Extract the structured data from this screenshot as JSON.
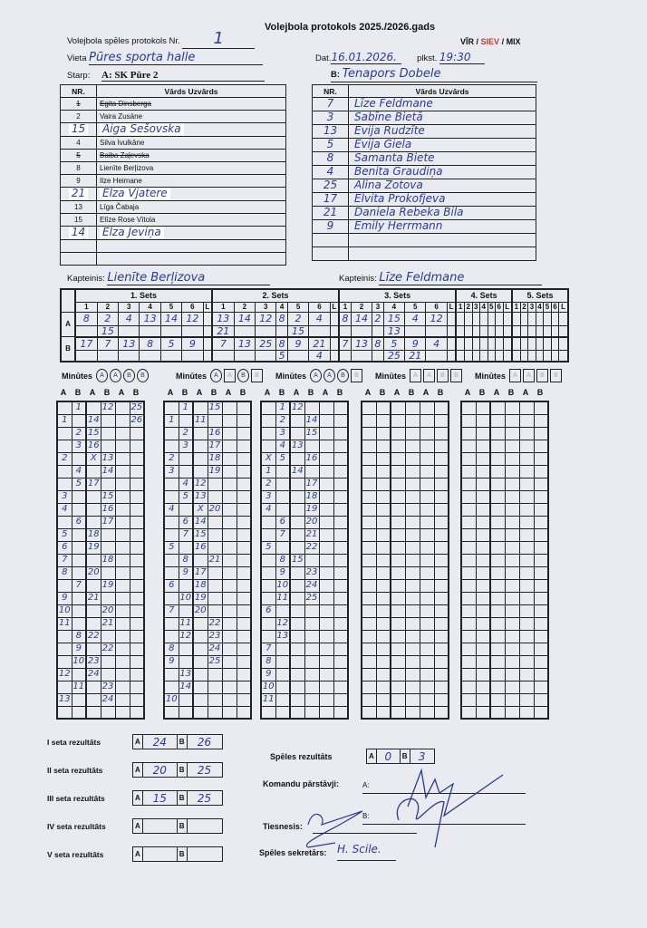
{
  "title": "Volejbola protokols 2025./2026.gads",
  "header": {
    "protocol_label": "Volejbola spēles protokols Nr.",
    "protocol_nr": "1",
    "venue_label": "Vieta",
    "venue": "Pūres sporta halle",
    "date_label": "Dat.",
    "date": "16.01.2026.",
    "time_label": "plkst.",
    "time": "19:30",
    "gender_vir": "VĪR /",
    "gender_siev": "SIEV",
    "gender_mix": "/ MIX",
    "gender_selected_color": "#c0392b",
    "between_label": "Starp:",
    "team_a_label": "A:",
    "team_a": "SK Pūre 2",
    "team_b_label": "B:",
    "team_b": "Tenapors Dobele"
  },
  "roster_headers": {
    "nr": "NR.",
    "name": "Vārds Uzvārds"
  },
  "team_a_players": [
    {
      "nr": "1",
      "name": "Egita Dinsberga",
      "struck": true
    },
    {
      "nr": "2",
      "name": "Vaira Zusāne"
    },
    {
      "nr": "15",
      "name": "Aiga Šešovska",
      "handwritten": true
    },
    {
      "nr": "4",
      "name": "Silva Ivulkāne"
    },
    {
      "nr": "5",
      "name": "Baiba Zaļevska",
      "struck": true
    },
    {
      "nr": "8",
      "name": "Lienīte Berļizova"
    },
    {
      "nr": "9",
      "name": "Ilze Heimane"
    },
    {
      "nr": "21",
      "name": "Elza Vjatere",
      "handwritten": true
    },
    {
      "nr": "13",
      "name": "Līga Čabaja"
    },
    {
      "nr": "15",
      "name": "Elīze Rose Vītola"
    },
    {
      "nr": "14",
      "name": "Elza Jeviņa",
      "handwritten": true
    },
    {
      "nr": "",
      "name": ""
    },
    {
      "nr": "",
      "name": ""
    }
  ],
  "team_b_players": [
    {
      "nr": "7",
      "name": "Līze Feldmane"
    },
    {
      "nr": "3",
      "name": "Sabīne Bietā"
    },
    {
      "nr": "13",
      "name": "Evija Rudzīte"
    },
    {
      "nr": "5",
      "name": "Evija Giela"
    },
    {
      "nr": "8",
      "name": "Samanta Biete"
    },
    {
      "nr": "4",
      "name": "Benita Graudiņa"
    },
    {
      "nr": "25",
      "name": "Alina Zotova"
    },
    {
      "nr": "17",
      "name": "Elvita Prokofjeva"
    },
    {
      "nr": "21",
      "name": "Daniela Rebeka Bila"
    },
    {
      "nr": "9",
      "name": "Emily Herrmann"
    },
    {
      "nr": "",
      "name": ""
    },
    {
      "nr": "",
      "name": ""
    }
  ],
  "captain_label": "Kapteinis:",
  "captain_a": "Lienīte Berļizova",
  "captain_b": "Līze Feldmane",
  "lineup": {
    "position_headers": [
      "1",
      "2",
      "3",
      "4",
      "5",
      "6",
      "L"
    ],
    "team_labels": [
      "A",
      "B"
    ],
    "minutes_label": "Minūtes",
    "sets": [
      {
        "label": "1. Sets",
        "a": [
          "8",
          "2",
          "4",
          "13",
          "14",
          "12",
          ""
        ],
        "a2": [
          "",
          "15",
          "",
          "",
          "",
          "",
          ""
        ],
        "b": [
          "17",
          "7",
          "13",
          "8",
          "5",
          "9",
          ""
        ],
        "b2": [
          "",
          "",
          "",
          "",
          "",
          "",
          ""
        ],
        "timeouts": [
          "A",
          "A",
          "B",
          "B"
        ],
        "timeouts_used": [
          true,
          true,
          true,
          true
        ]
      },
      {
        "label": "2. Sets",
        "a": [
          "13",
          "14",
          "12",
          "8",
          "2",
          "4",
          ""
        ],
        "a2": [
          "21",
          "",
          "",
          "",
          "15",
          "",
          ""
        ],
        "b": [
          "7",
          "13",
          "25",
          "8",
          "9",
          "21",
          ""
        ],
        "b2": [
          "",
          "",
          "",
          "5",
          "",
          "4",
          ""
        ],
        "timeouts": [
          "A",
          "A",
          "B",
          "B"
        ],
        "timeouts_used": [
          true,
          false,
          true,
          false
        ]
      },
      {
        "label": "3. Sets",
        "a": [
          "8",
          "14",
          "2",
          "15",
          "4",
          "12",
          ""
        ],
        "a2": [
          "",
          "",
          "",
          "13",
          "",
          "",
          ""
        ],
        "b": [
          "7",
          "13",
          "8",
          "5",
          "9",
          "4",
          ""
        ],
        "b2": [
          "",
          "",
          "",
          "25",
          "21",
          "",
          ""
        ],
        "timeouts": [
          "A",
          "A",
          "B",
          "B"
        ],
        "timeouts_used": [
          true,
          true,
          true,
          false
        ]
      },
      {
        "label": "4. Sets",
        "a": [
          "",
          "",
          "",
          "",
          "",
          "",
          ""
        ],
        "a2": [
          "",
          "",
          "",
          "",
          "",
          "",
          ""
        ],
        "b": [
          "",
          "",
          "",
          "",
          "",
          "",
          ""
        ],
        "b2": [
          "",
          "",
          "",
          "",
          "",
          "",
          ""
        ],
        "timeouts": [
          "A",
          "A",
          "B",
          "B"
        ],
        "timeouts_used": [
          false,
          false,
          false,
          false
        ]
      },
      {
        "label": "5. Sets",
        "a": [
          "",
          "",
          "",
          "",
          "",
          "",
          ""
        ],
        "a2": [
          "",
          "",
          "",
          "",
          "",
          "",
          ""
        ],
        "b": [
          "",
          "",
          "",
          "",
          "",
          "",
          ""
        ],
        "b2": [
          "",
          "",
          "",
          "",
          "",
          "",
          ""
        ],
        "timeouts": [
          "A",
          "A",
          "B",
          "B"
        ],
        "timeouts_used": [
          false,
          false,
          false,
          false
        ]
      }
    ]
  },
  "score_column_headers": [
    "A",
    "B",
    "A",
    "B",
    "A",
    "B"
  ],
  "running_scores": [
    [
      [
        "",
        "1",
        "",
        "12",
        "",
        "25"
      ],
      [
        "1",
        "",
        "14",
        "",
        "",
        "26"
      ],
      [
        "",
        "2",
        "15",
        "",
        "",
        ""
      ],
      [
        "",
        "3",
        "16",
        "",
        "",
        ""
      ],
      [
        "2",
        "",
        "X",
        "13",
        "",
        ""
      ],
      [
        "",
        "4",
        "",
        "14",
        "",
        ""
      ],
      [
        "",
        "5",
        "17",
        "",
        "",
        ""
      ],
      [
        "3",
        "",
        "",
        "15",
        "",
        ""
      ],
      [
        "4",
        "",
        "",
        "16",
        "",
        ""
      ],
      [
        "",
        "6",
        "",
        "17",
        "",
        ""
      ],
      [
        "5",
        "",
        "18",
        "",
        "",
        ""
      ],
      [
        "6",
        "",
        "19",
        "",
        "",
        ""
      ],
      [
        "7",
        "",
        "",
        "18",
        "",
        ""
      ],
      [
        "8",
        "",
        "20",
        "",
        "",
        ""
      ],
      [
        "",
        "7",
        "",
        "19",
        "",
        ""
      ],
      [
        "9",
        "",
        "21",
        "",
        "",
        ""
      ],
      [
        "10",
        "",
        "",
        "20",
        "",
        ""
      ],
      [
        "11",
        "",
        "",
        "21",
        "",
        ""
      ],
      [
        "",
        "8",
        "22",
        "",
        "",
        ""
      ],
      [
        "",
        "9",
        "",
        "22",
        "",
        ""
      ],
      [
        "",
        "10",
        "23",
        "",
        "",
        ""
      ],
      [
        "12",
        "",
        "24",
        "",
        "",
        ""
      ],
      [
        "",
        "11",
        "",
        "23",
        "",
        ""
      ],
      [
        "13",
        "",
        "",
        "24",
        "",
        ""
      ],
      [
        "",
        "",
        "",
        "",
        "",
        ""
      ]
    ],
    [
      [
        "",
        "1",
        "",
        "15",
        "",
        ""
      ],
      [
        "1",
        "",
        "11",
        "",
        "",
        ""
      ],
      [
        "",
        "2",
        "",
        "16",
        "",
        ""
      ],
      [
        "",
        "3",
        "",
        "17",
        "",
        ""
      ],
      [
        "2",
        "",
        "",
        "18",
        "",
        ""
      ],
      [
        "3",
        "",
        "",
        "19",
        "",
        ""
      ],
      [
        "",
        "4",
        "12",
        "",
        "",
        ""
      ],
      [
        "",
        "5",
        "13",
        "",
        "",
        ""
      ],
      [
        "4",
        "",
        "X",
        "20",
        "",
        ""
      ],
      [
        "",
        "6",
        "14",
        "",
        "",
        ""
      ],
      [
        "",
        "7",
        "15",
        "",
        "",
        ""
      ],
      [
        "5",
        "",
        "16",
        "",
        "",
        ""
      ],
      [
        "",
        "8",
        "",
        "21",
        "",
        ""
      ],
      [
        "",
        "9",
        "17",
        "",
        "",
        ""
      ],
      [
        "6",
        "",
        "18",
        "",
        "",
        ""
      ],
      [
        "",
        "10",
        "19",
        "",
        "",
        ""
      ],
      [
        "7",
        "",
        "20",
        "",
        "",
        ""
      ],
      [
        "",
        "11",
        "",
        "22",
        "",
        ""
      ],
      [
        "",
        "12",
        "",
        "23",
        "",
        ""
      ],
      [
        "8",
        "",
        "",
        "24",
        "",
        ""
      ],
      [
        "9",
        "",
        "",
        "25",
        "",
        ""
      ],
      [
        "",
        "13",
        "",
        "",
        "",
        ""
      ],
      [
        "",
        "14",
        "",
        "",
        "",
        ""
      ],
      [
        "10",
        "",
        "",
        "",
        "",
        ""
      ],
      [
        "",
        "",
        "",
        "",
        "",
        ""
      ]
    ],
    [
      [
        "",
        "1",
        "12",
        "",
        "",
        ""
      ],
      [
        "",
        "2",
        "",
        "14",
        "",
        ""
      ],
      [
        "",
        "3",
        "",
        "15",
        "",
        ""
      ],
      [
        "",
        "4",
        "13",
        "",
        "",
        ""
      ],
      [
        "X",
        "5",
        "",
        "16",
        "",
        ""
      ],
      [
        "1",
        "",
        "14",
        "",
        "",
        ""
      ],
      [
        "2",
        "",
        "",
        "17",
        "",
        ""
      ],
      [
        "3",
        "",
        "",
        "18",
        "",
        ""
      ],
      [
        "4",
        "",
        "",
        "19",
        "",
        ""
      ],
      [
        "",
        "6",
        "",
        "20",
        "",
        ""
      ],
      [
        "",
        "7",
        "",
        "21",
        "",
        ""
      ],
      [
        "5",
        "",
        "",
        "22",
        "",
        ""
      ],
      [
        "",
        "8",
        "15",
        "",
        "",
        ""
      ],
      [
        "",
        "9",
        "",
        "23",
        "",
        ""
      ],
      [
        "",
        "10",
        "",
        "24",
        "",
        ""
      ],
      [
        "",
        "11",
        "",
        "25",
        "",
        ""
      ],
      [
        "6",
        "",
        "",
        "",
        "",
        ""
      ],
      [
        "",
        "12",
        "",
        "",
        "",
        ""
      ],
      [
        "",
        "13",
        "",
        "",
        "",
        ""
      ],
      [
        "7",
        "",
        "",
        "",
        "",
        ""
      ],
      [
        "8",
        "",
        "",
        "",
        "",
        ""
      ],
      [
        "9",
        "",
        "",
        "",
        "",
        ""
      ],
      [
        "10",
        "",
        "",
        "",
        "",
        ""
      ],
      [
        "11",
        "",
        "",
        "",
        "",
        ""
      ],
      [
        "",
        "",
        "",
        "",
        "",
        ""
      ]
    ],
    [],
    []
  ],
  "set_results": [
    {
      "label": "I seta rezultāts",
      "a": "24",
      "b": "26"
    },
    {
      "label": "II seta rezultāts",
      "a": "20",
      "b": "25"
    },
    {
      "label": "III seta rezultāts",
      "a": "15",
      "b": "25"
    },
    {
      "label": "IV seta rezultāts",
      "a": "",
      "b": ""
    },
    {
      "label": "V seta rezultāts",
      "a": "",
      "b": ""
    }
  ],
  "box_a": "A",
  "box_b": "B",
  "match_result": {
    "label": "Spēles rezultāts",
    "a": "0",
    "b": "3"
  },
  "representatives": {
    "label": "Komandu pārstāvji:",
    "a_label": "A:",
    "b_label": "B:"
  },
  "referee_label": "Tiesnesis:",
  "secretary": {
    "label": "Spēles sekretārs:",
    "name": "H. Scile."
  }
}
